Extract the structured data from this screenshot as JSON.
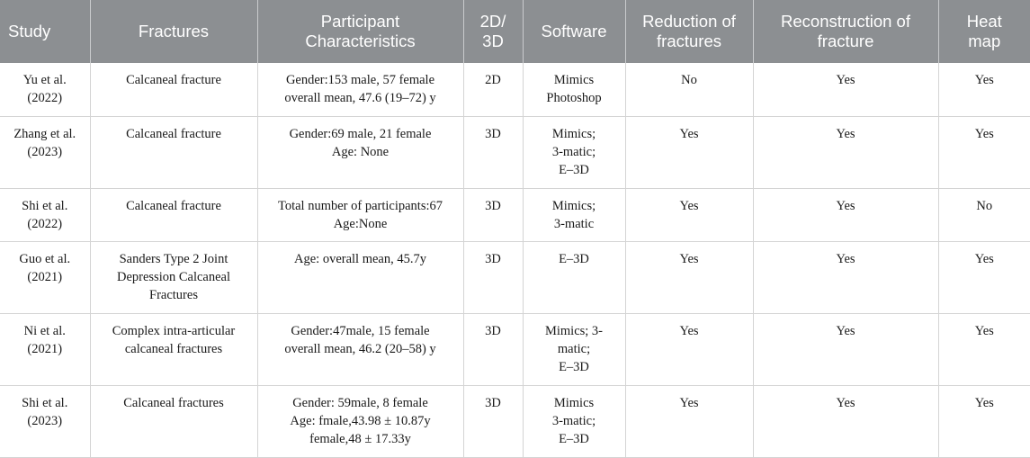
{
  "headers": [
    [
      "Study"
    ],
    [
      "Fractures"
    ],
    [
      "Participant",
      "Characteristics"
    ],
    [
      "2D/",
      "3D"
    ],
    [
      "Software"
    ],
    [
      "Reduction of",
      "fractures"
    ],
    [
      "Reconstruction of",
      "fracture"
    ],
    [
      "Heat",
      "map"
    ]
  ],
  "rows": [
    {
      "study": [
        "Yu et al.",
        "(2022)"
      ],
      "fractures": [
        "Calcaneal fracture"
      ],
      "participants": [
        "Gender:153 male, 57 female",
        "overall mean, 47.6 (19–72) y"
      ],
      "dim": "2D",
      "software": [
        "Mimics",
        "Photoshop"
      ],
      "reduction": "No",
      "reconstruction": "Yes",
      "heatmap": "Yes"
    },
    {
      "study": [
        "Zhang et al.",
        "(2023)"
      ],
      "fractures": [
        "Calcaneal fracture"
      ],
      "participants": [
        "Gender:69 male, 21 female",
        "Age: None"
      ],
      "dim": "3D",
      "software": [
        "Mimics;",
        "3-matic;",
        "E–3D"
      ],
      "reduction": "Yes",
      "reconstruction": "Yes",
      "heatmap": "Yes"
    },
    {
      "study": [
        "Shi et al.",
        "(2022)"
      ],
      "fractures": [
        "Calcaneal fracture"
      ],
      "participants": [
        "Total number of participants:67",
        "Age:None"
      ],
      "dim": "3D",
      "software": [
        "Mimics;",
        "3-matic"
      ],
      "reduction": "Yes",
      "reconstruction": "Yes",
      "heatmap": "No"
    },
    {
      "study": [
        "Guo et al.",
        "(2021)"
      ],
      "fractures": [
        "Sanders Type 2 Joint",
        "Depression Calcaneal",
        "Fractures"
      ],
      "participants": [
        "Age: overall mean, 45.7y"
      ],
      "dim": "3D",
      "software": [
        "E–3D"
      ],
      "reduction": "Yes",
      "reconstruction": "Yes",
      "heatmap": "Yes"
    },
    {
      "study": [
        "Ni et al.",
        "(2021)"
      ],
      "fractures": [
        "Complex intra-articular",
        "calcaneal fractures"
      ],
      "participants": [
        "Gender:47male, 15 female",
        "overall mean, 46.2 (20–58) y"
      ],
      "dim": "3D",
      "software": [
        "Mimics; 3-",
        "matic;",
        "E–3D"
      ],
      "reduction": "Yes",
      "reconstruction": "Yes",
      "heatmap": "Yes"
    },
    {
      "study": [
        "Shi et al.",
        "(2023)"
      ],
      "fractures": [
        "Calcaneal fractures"
      ],
      "participants": [
        "Gender: 59male, 8 female",
        "Age: fmale,43.98 ± 10.87y",
        "female,48 ± 17.33y"
      ],
      "dim": "3D",
      "software": [
        "Mimics",
        "3-matic;",
        "E–3D"
      ],
      "reduction": "Yes",
      "reconstruction": "Yes",
      "heatmap": "Yes"
    }
  ],
  "colors": {
    "header_bg": "#8c8f92",
    "header_text": "#ffffff",
    "grid_line": "#d4d4d4"
  }
}
